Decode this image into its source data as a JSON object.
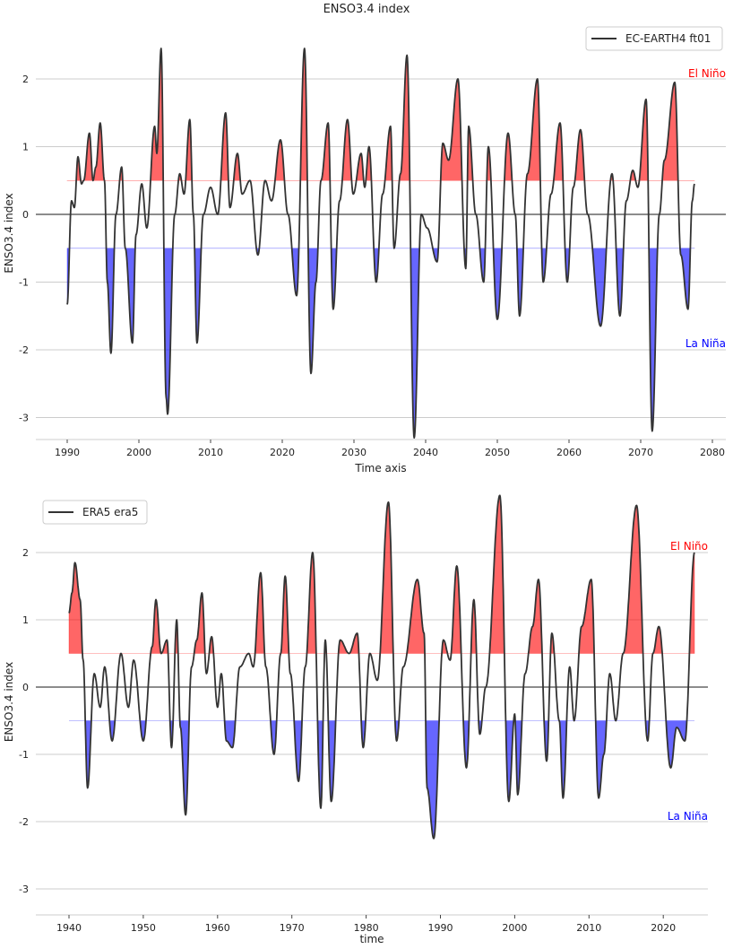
{
  "title": "ENSO3.4 index",
  "chart_data": [
    {
      "type": "line",
      "title": "ENSO3.4 index",
      "xlabel": "Time axis",
      "ylabel": "ENSO3.4 index",
      "xlim": [
        1986,
        2081
      ],
      "ylim": [
        -3.35,
        2.75
      ],
      "xticks": [
        "1990",
        "2000",
        "2010",
        "2020",
        "2030",
        "2040",
        "2050",
        "2060",
        "2070",
        "2080"
      ],
      "yticks": [
        "-3",
        "-2",
        "-1",
        "0",
        "1",
        "2"
      ],
      "grid": true,
      "legend": "top-right",
      "thresholds": {
        "el_nino": 0.5,
        "la_nina": -0.5
      },
      "annotations": {
        "el_nino": "El Niño",
        "la_nina": "La Niña"
      },
      "colors": {
        "line": "#333333",
        "el_nino": "#ff0000",
        "la_nina": "#0000ff"
      },
      "series": [
        {
          "name": "EC-EARTH4 ft01",
          "points": [
            [
              1990.0,
              -1.33
            ],
            [
              1990.6,
              0.2
            ],
            [
              1991.0,
              0.1
            ],
            [
              1991.5,
              0.85
            ],
            [
              1992.0,
              0.45
            ],
            [
              1992.3,
              0.5
            ],
            [
              1993.1,
              1.2
            ],
            [
              1993.6,
              0.5
            ],
            [
              1994.0,
              0.7
            ],
            [
              1994.6,
              1.35
            ],
            [
              1995.2,
              0.5
            ],
            [
              1995.6,
              -1.0
            ],
            [
              1996.1,
              -2.05
            ],
            [
              1996.8,
              0.0
            ],
            [
              1997.6,
              0.7
            ],
            [
              1998.1,
              -0.5
            ],
            [
              1999.1,
              -1.9
            ],
            [
              1999.6,
              -0.3
            ],
            [
              2000.4,
              0.45
            ],
            [
              2001.1,
              -0.2
            ],
            [
              2002.2,
              1.3
            ],
            [
              2002.5,
              0.9
            ],
            [
              2003.1,
              2.45
            ],
            [
              2003.8,
              -2.7
            ],
            [
              2004.0,
              -2.95
            ],
            [
              2005.0,
              0.0
            ],
            [
              2005.7,
              0.6
            ],
            [
              2006.3,
              0.3
            ],
            [
              2007.1,
              1.4
            ],
            [
              2007.6,
              0.0
            ],
            [
              2008.1,
              -1.9
            ],
            [
              2009.0,
              0.0
            ],
            [
              2010.0,
              0.4
            ],
            [
              2011.0,
              0.0
            ],
            [
              2012.1,
              1.5
            ],
            [
              2012.7,
              0.1
            ],
            [
              2013.75,
              0.9
            ],
            [
              2014.4,
              0.3
            ],
            [
              2015.5,
              0.5
            ],
            [
              2016.6,
              -0.6
            ],
            [
              2017.6,
              0.5
            ],
            [
              2018.5,
              0.2
            ],
            [
              2019.75,
              1.1
            ],
            [
              2020.8,
              0.0
            ],
            [
              2022.0,
              -1.2
            ],
            [
              2023.1,
              2.45
            ],
            [
              2024.0,
              -2.35
            ],
            [
              2024.7,
              -1.0
            ],
            [
              2025.4,
              0.5
            ],
            [
              2026.4,
              1.35
            ],
            [
              2027.1,
              -1.4
            ],
            [
              2028.0,
              0.2
            ],
            [
              2029.1,
              1.4
            ],
            [
              2029.9,
              0.3
            ],
            [
              2031.0,
              0.9
            ],
            [
              2031.5,
              0.4
            ],
            [
              2032.1,
              1.0
            ],
            [
              2033.1,
              -1.0
            ],
            [
              2034.0,
              0.3
            ],
            [
              2035.1,
              1.3
            ],
            [
              2035.6,
              -0.5
            ],
            [
              2036.5,
              0.6
            ],
            [
              2037.4,
              2.35
            ],
            [
              2038.4,
              -3.3
            ],
            [
              2039.4,
              0.0
            ],
            [
              2040.2,
              -0.2
            ],
            [
              2041.6,
              -0.7
            ],
            [
              2042.4,
              1.05
            ],
            [
              2043.2,
              0.8
            ],
            [
              2044.5,
              2.0
            ],
            [
              2045.6,
              -0.8
            ],
            [
              2046.0,
              1.3
            ],
            [
              2047.0,
              0.0
            ],
            [
              2048.1,
              -1.0
            ],
            [
              2048.75,
              1.0
            ],
            [
              2050.0,
              -1.55
            ],
            [
              2051.5,
              1.2
            ],
            [
              2052.5,
              0.0
            ],
            [
              2053.1,
              -1.5
            ],
            [
              2054.2,
              0.6
            ],
            [
              2055.6,
              2.0
            ],
            [
              2056.4,
              -1.0
            ],
            [
              2057.5,
              0.3
            ],
            [
              2058.75,
              1.35
            ],
            [
              2059.75,
              -1.0
            ],
            [
              2060.6,
              0.4
            ],
            [
              2061.6,
              1.25
            ],
            [
              2062.6,
              0.0
            ],
            [
              2064.4,
              -1.65
            ],
            [
              2066.0,
              0.6
            ],
            [
              2067.1,
              -1.5
            ],
            [
              2068.0,
              0.2
            ],
            [
              2068.9,
              0.65
            ],
            [
              2069.6,
              0.4
            ],
            [
              2070.75,
              1.7
            ],
            [
              2071.6,
              -3.2
            ],
            [
              2072.6,
              0.0
            ],
            [
              2073.3,
              0.8
            ],
            [
              2074.75,
              1.95
            ],
            [
              2075.6,
              -0.6
            ],
            [
              2076.6,
              -1.4
            ],
            [
              2077.2,
              0.2
            ],
            [
              2077.5,
              0.45
            ]
          ]
        }
      ]
    },
    {
      "type": "line",
      "title": "",
      "xlabel": "time",
      "ylabel": "ENSO3.4 index",
      "xlim": [
        1936,
        2028
      ],
      "ylim": [
        -3.35,
        2.9
      ],
      "xticks": [
        "1940",
        "1950",
        "1960",
        "1970",
        "1980",
        "1990",
        "2000",
        "2010",
        "2020"
      ],
      "yticks": [
        "-3",
        "-2",
        "-1",
        "0",
        "1",
        "2"
      ],
      "grid": true,
      "legend": "top-left",
      "thresholds": {
        "el_nino": 0.5,
        "la_nina": -0.5
      },
      "annotations": {
        "el_nino": "El Niño",
        "la_nina": "La Niña"
      },
      "colors": {
        "line": "#333333",
        "el_nino": "#ff0000",
        "la_nina": "#0000ff"
      },
      "series": [
        {
          "name": "ERA5 era5",
          "points": [
            [
              1940.0,
              1.1
            ],
            [
              1940.4,
              1.4
            ],
            [
              1940.8,
              1.85
            ],
            [
              1941.5,
              1.3
            ],
            [
              1941.9,
              0.4
            ],
            [
              1942.5,
              -1.5
            ],
            [
              1943.4,
              0.2
            ],
            [
              1944.2,
              -0.3
            ],
            [
              1944.8,
              0.3
            ],
            [
              1945.8,
              -0.8
            ],
            [
              1947.0,
              0.5
            ],
            [
              1948.0,
              -0.3
            ],
            [
              1948.7,
              0.4
            ],
            [
              1950.0,
              -0.8
            ],
            [
              1951.2,
              0.6
            ],
            [
              1951.7,
              1.3
            ],
            [
              1952.4,
              0.5
            ],
            [
              1953.2,
              0.7
            ],
            [
              1953.8,
              -0.9
            ],
            [
              1954.5,
              1.0
            ],
            [
              1955.0,
              -0.6
            ],
            [
              1955.7,
              -1.9
            ],
            [
              1956.5,
              0.3
            ],
            [
              1957.2,
              0.7
            ],
            [
              1957.9,
              1.4
            ],
            [
              1958.5,
              0.2
            ],
            [
              1959.2,
              0.75
            ],
            [
              1960.0,
              -0.3
            ],
            [
              1960.5,
              0.2
            ],
            [
              1961.2,
              -0.8
            ],
            [
              1962.0,
              -0.9
            ],
            [
              1963.0,
              0.3
            ],
            [
              1964.2,
              0.5
            ],
            [
              1964.8,
              0.3
            ],
            [
              1965.8,
              1.7
            ],
            [
              1966.5,
              0.3
            ],
            [
              1967.6,
              -1.0
            ],
            [
              1968.5,
              0.5
            ],
            [
              1969.1,
              1.65
            ],
            [
              1969.8,
              0.2
            ],
            [
              1970.9,
              -1.4
            ],
            [
              1971.8,
              0.3
            ],
            [
              1972.8,
              2.0
            ],
            [
              1973.9,
              -1.8
            ],
            [
              1974.5,
              0.7
            ],
            [
              1975.3,
              -1.7
            ],
            [
              1976.5,
              0.7
            ],
            [
              1977.7,
              0.5
            ],
            [
              1978.8,
              0.8
            ],
            [
              1979.6,
              -0.9
            ],
            [
              1980.5,
              0.5
            ],
            [
              1981.5,
              0.1
            ],
            [
              1983.0,
              2.75
            ],
            [
              1984.1,
              -0.8
            ],
            [
              1985.0,
              0.3
            ],
            [
              1986.9,
              1.6
            ],
            [
              1987.8,
              0.8
            ],
            [
              1988.2,
              -1.5
            ],
            [
              1989.1,
              -2.25
            ],
            [
              1990.4,
              0.7
            ],
            [
              1991.3,
              0.4
            ],
            [
              1992.2,
              1.8
            ],
            [
              1993.5,
              -1.2
            ],
            [
              1994.5,
              1.3
            ],
            [
              1995.3,
              -0.7
            ],
            [
              1996.1,
              0.0
            ],
            [
              1998.0,
              2.85
            ],
            [
              1999.2,
              -1.7
            ],
            [
              2000.0,
              -0.4
            ],
            [
              2000.4,
              -1.6
            ],
            [
              2001.4,
              0.2
            ],
            [
              2002.4,
              0.9
            ],
            [
              2003.2,
              1.6
            ],
            [
              2004.3,
              -1.1
            ],
            [
              2005.0,
              0.8
            ],
            [
              2006.0,
              -0.5
            ],
            [
              2006.5,
              -1.65
            ],
            [
              2007.4,
              0.3
            ],
            [
              2008.0,
              -0.5
            ],
            [
              2009.0,
              0.9
            ],
            [
              2010.3,
              1.6
            ],
            [
              2011.3,
              -1.65
            ],
            [
              2012.0,
              -1.0
            ],
            [
              2012.8,
              0.2
            ],
            [
              2013.6,
              -0.5
            ],
            [
              2014.6,
              0.5
            ],
            [
              2016.4,
              2.7
            ],
            [
              2017.9,
              -0.8
            ],
            [
              2018.6,
              0.5
            ],
            [
              2019.4,
              0.9
            ],
            [
              2021.0,
              -1.2
            ],
            [
              2021.8,
              -0.6
            ],
            [
              2022.9,
              -0.8
            ],
            [
              2024.2,
              2.0
            ]
          ]
        }
      ]
    }
  ]
}
